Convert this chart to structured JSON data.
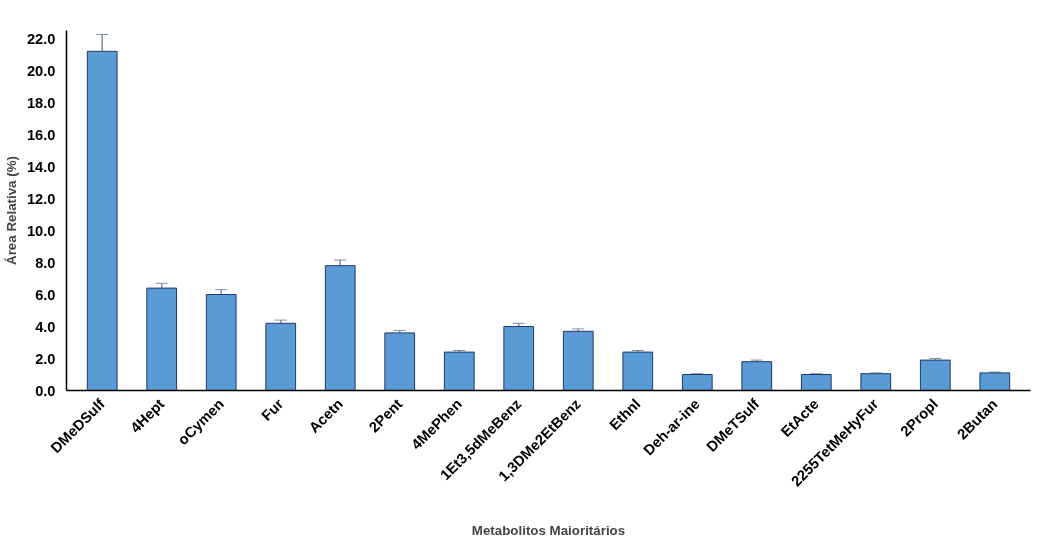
{
  "chart_data": {
    "type": "bar",
    "xlabel": "Metabolitos Maioritários",
    "ylabel": "Área Relativa (%)",
    "categories": [
      "DMeDSulf",
      "4Hept",
      "oCymen",
      "Fur",
      "Acetn",
      "2Pent",
      "4MePhen",
      "1Et3,5dMeBenz",
      "1,3DMe2EtBenz",
      "Ethnl",
      "Deh-ar-ine",
      "DMeTSulf",
      "EtActe",
      "2255TetMeHyFur",
      "2Propl",
      "2Butan"
    ],
    "values": [
      21.2,
      6.4,
      6.0,
      4.2,
      7.8,
      3.6,
      2.4,
      4.0,
      3.7,
      2.4,
      1.0,
      1.8,
      1.0,
      1.05,
      1.9,
      1.1
    ],
    "errors": [
      1.05,
      0.3,
      0.3,
      0.2,
      0.35,
      0.15,
      0.1,
      0.2,
      0.15,
      0.1,
      0.05,
      0.1,
      0.05,
      0.05,
      0.1,
      0.05
    ],
    "color": "#5b9bd5",
    "ylim": [
      0,
      22.5
    ],
    "yticks": [
      {
        "value": 0,
        "label": "0.0"
      },
      {
        "value": 2,
        "label": "2.0"
      },
      {
        "value": 4,
        "label": "4.0"
      },
      {
        "value": 6,
        "label": "6.0"
      },
      {
        "value": 8,
        "label": "8.0"
      },
      {
        "value": 10,
        "label": "10.0"
      },
      {
        "value": 12,
        "label": "12.0"
      },
      {
        "value": 14,
        "label": "14.0"
      },
      {
        "value": 16,
        "label": "16.0"
      },
      {
        "value": 18,
        "label": "18.0"
      },
      {
        "value": 20,
        "label": "20.0"
      },
      {
        "value": 22,
        "label": "22.0"
      }
    ],
    "grid": false
  }
}
